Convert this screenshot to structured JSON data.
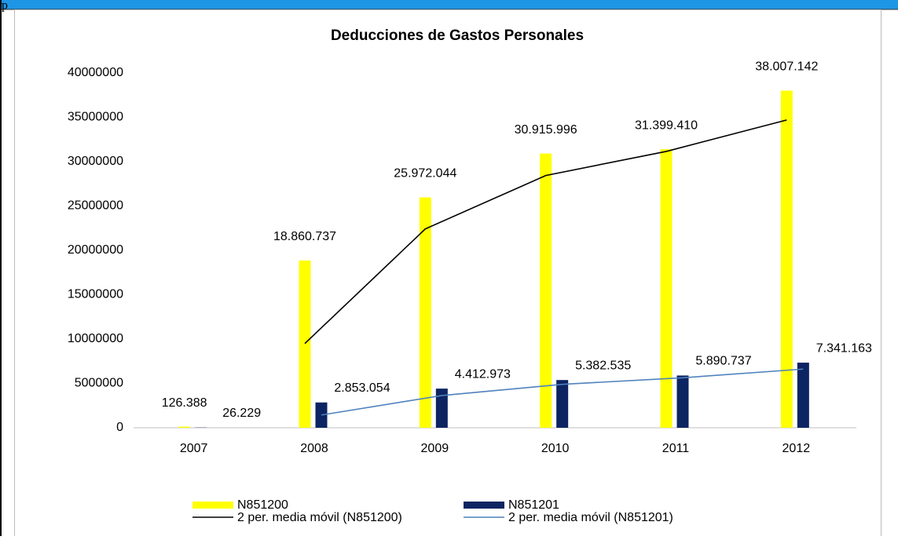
{
  "page": {
    "label": "p"
  },
  "chart_data": {
    "type": "bar",
    "title": "Deducciones de Gastos Personales",
    "categories": [
      "2007",
      "2008",
      "2009",
      "2010",
      "2011",
      "2012"
    ],
    "series": [
      {
        "name": "N851200",
        "color": "#ffff00",
        "values": [
          126388,
          18860737,
          25972044,
          30915996,
          31399410,
          38007142
        ],
        "value_labels": [
          "126.388",
          "18.860.737",
          "25.972.044",
          "30.915.996",
          "31.399.410",
          "38.007.142"
        ]
      },
      {
        "name": "N851201",
        "color": "#0c2461",
        "values": [
          26229,
          2853054,
          4412973,
          5382535,
          5890737,
          7341163
        ],
        "value_labels": [
          "26.229",
          "2.853.054",
          "4.412.973",
          "5.382.535",
          "5.890.737",
          "7.341.163"
        ]
      }
    ],
    "trendlines": [
      {
        "name": "2 per. media móvil (N851200)",
        "color": "#000000",
        "of": 0,
        "values": [
          null,
          9493562.5,
          22416390.5,
          28444020,
          31157703,
          34703276
        ]
      },
      {
        "name": "2 per. media móvil (N851201)",
        "color": "#4f81bd",
        "of": 1,
        "values": [
          null,
          1439641.5,
          3633013.5,
          4897754,
          5636636,
          6615950
        ]
      }
    ],
    "ylim": [
      0,
      40000000
    ],
    "yticks": [
      0,
      5000000,
      10000000,
      15000000,
      20000000,
      25000000,
      30000000,
      35000000,
      40000000
    ],
    "grid": false
  }
}
